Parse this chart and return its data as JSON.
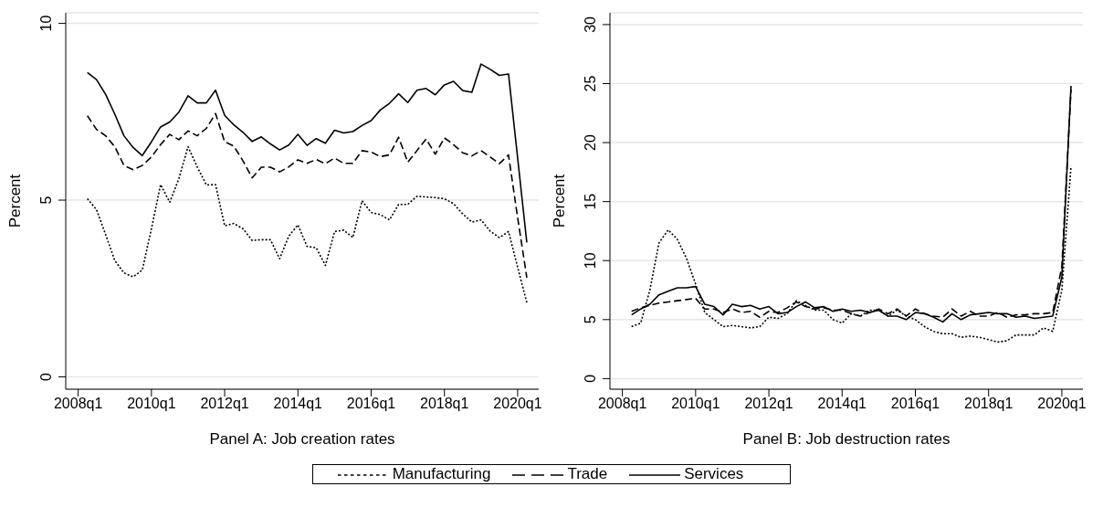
{
  "chart_data": [
    {
      "type": "line",
      "xlabel": "Panel A: Job creation rates",
      "ylabel": "Percent",
      "categories": [
        "2008q1",
        null,
        null,
        null,
        null,
        null,
        null,
        null,
        "2010q1",
        null,
        null,
        null,
        null,
        null,
        null,
        null,
        "2012q1",
        null,
        null,
        null,
        null,
        null,
        null,
        null,
        "2014q1",
        null,
        null,
        null,
        null,
        null,
        null,
        null,
        "2016q1",
        null,
        null,
        null,
        null,
        null,
        null,
        null,
        "2018q1",
        null,
        null,
        null,
        null,
        null,
        null,
        null,
        "2020q1",
        null
      ],
      "ylim": [
        -0.35,
        10.3
      ],
      "yticks": [
        0,
        5,
        10
      ],
      "grid": "y",
      "series": [
        {
          "color": "#000000",
          "line_style": "dotted",
          "values": [
            null,
            5.04,
            4.73,
            4.02,
            3.29,
            2.94,
            2.83,
            3.02,
            4.19,
            5.44,
            4.94,
            5.61,
            6.51,
            5.94,
            5.43,
            5.44,
            4.27,
            4.34,
            4.19,
            3.86,
            3.88,
            3.88,
            3.34,
            3.98,
            4.3,
            3.69,
            3.65,
            3.15,
            4.11,
            4.15,
            3.94,
            4.98,
            4.65,
            4.59,
            4.44,
            4.88,
            4.88,
            5.11,
            5.09,
            5.07,
            5.04,
            4.9,
            4.61,
            4.38,
            4.44,
            4.12,
            3.94,
            4.11,
            3.1,
            2.1
          ]
        },
        {
          "color": "#000000",
          "line_style": "dashed",
          "values": [
            null,
            7.39,
            7.0,
            6.82,
            6.51,
            5.98,
            5.86,
            5.98,
            6.22,
            6.57,
            6.86,
            6.71,
            6.96,
            6.82,
            7.03,
            7.45,
            6.65,
            6.53,
            6.11,
            5.63,
            5.93,
            5.93,
            5.8,
            5.94,
            6.14,
            6.04,
            6.15,
            6.03,
            6.19,
            6.04,
            6.04,
            6.4,
            6.36,
            6.23,
            6.28,
            6.78,
            6.07,
            6.4,
            6.73,
            6.3,
            6.76,
            6.57,
            6.34,
            6.25,
            6.4,
            6.22,
            6.03,
            6.28,
            4.5,
            2.81
          ]
        },
        {
          "color": "#000000",
          "line_style": "solid",
          "values": [
            null,
            8.61,
            8.41,
            7.99,
            7.43,
            6.82,
            6.49,
            6.26,
            6.65,
            7.07,
            7.21,
            7.49,
            7.95,
            7.75,
            7.75,
            8.11,
            7.4,
            7.13,
            6.92,
            6.66,
            6.79,
            6.59,
            6.42,
            6.56,
            6.86,
            6.55,
            6.74,
            6.61,
            6.98,
            6.9,
            6.94,
            7.11,
            7.25,
            7.55,
            7.74,
            8.01,
            7.76,
            8.11,
            8.16,
            7.98,
            8.26,
            8.36,
            8.1,
            8.05,
            8.85,
            8.7,
            8.53,
            8.57,
            6.19,
            3.8
          ]
        }
      ]
    },
    {
      "type": "line",
      "xlabel": "Panel B: Job destruction rates",
      "ylabel": "Percent",
      "categories": [
        "2008q1",
        null,
        null,
        null,
        null,
        null,
        null,
        null,
        "2010q1",
        null,
        null,
        null,
        null,
        null,
        null,
        null,
        "2012q1",
        null,
        null,
        null,
        null,
        null,
        null,
        null,
        "2014q1",
        null,
        null,
        null,
        null,
        null,
        null,
        null,
        "2016q1",
        null,
        null,
        null,
        null,
        null,
        null,
        null,
        "2018q1",
        null,
        null,
        null,
        null,
        null,
        null,
        null,
        "2020q1",
        null
      ],
      "ylim": [
        -0.9,
        31
      ],
      "yticks": [
        0,
        5,
        10,
        15,
        20,
        25,
        30
      ],
      "grid": "y",
      "legend": "bottom",
      "series": [
        {
          "name": "Manufacturing",
          "color": "#000000",
          "line_style": "dotted",
          "values": [
            null,
            4.4,
            4.7,
            7.5,
            11.5,
            12.6,
            11.8,
            10.2,
            8.0,
            5.6,
            5.0,
            4.4,
            4.5,
            4.4,
            4.3,
            4.4,
            5.2,
            5.1,
            5.5,
            6.6,
            6.2,
            5.8,
            5.8,
            5.0,
            4.7,
            5.5,
            5.3,
            5.8,
            5.8,
            5.3,
            5.8,
            5.3,
            5.0,
            4.4,
            4.0,
            3.8,
            3.8,
            3.5,
            3.6,
            3.5,
            3.3,
            3.1,
            3.2,
            3.7,
            3.7,
            3.7,
            4.3,
            4.0,
            7.5,
            18.0
          ]
        },
        {
          "name": "Trade",
          "color": "#000000",
          "line_style": "dashed",
          "values": [
            null,
            5.7,
            6.0,
            6.2,
            6.4,
            6.5,
            6.6,
            6.7,
            6.8,
            5.9,
            5.9,
            5.6,
            5.9,
            5.6,
            5.7,
            5.2,
            5.7,
            5.6,
            6.0,
            6.5,
            6.1,
            5.9,
            6.0,
            5.8,
            5.8,
            5.5,
            5.3,
            5.6,
            5.9,
            5.5,
            5.9,
            5.3,
            5.9,
            5.5,
            5.3,
            5.2,
            5.9,
            5.3,
            5.7,
            5.3,
            5.3,
            5.6,
            5.2,
            5.4,
            5.4,
            5.5,
            5.5,
            5.6,
            9.5,
            24.5
          ]
        },
        {
          "name": "Services",
          "color": "#000000",
          "line_style": "solid",
          "values": [
            null,
            5.4,
            5.9,
            6.3,
            7.1,
            7.4,
            7.7,
            7.7,
            7.8,
            6.3,
            6.1,
            5.4,
            6.3,
            6.1,
            6.2,
            5.9,
            6.1,
            5.5,
            5.6,
            6.1,
            6.5,
            6.0,
            6.1,
            5.7,
            5.9,
            5.7,
            5.8,
            5.6,
            5.8,
            5.3,
            5.3,
            5.0,
            5.6,
            5.5,
            5.2,
            4.8,
            5.5,
            5.0,
            5.4,
            5.5,
            5.6,
            5.5,
            5.5,
            5.2,
            5.3,
            5.1,
            5.2,
            5.3,
            8.6,
            24.8
          ]
        }
      ]
    }
  ]
}
